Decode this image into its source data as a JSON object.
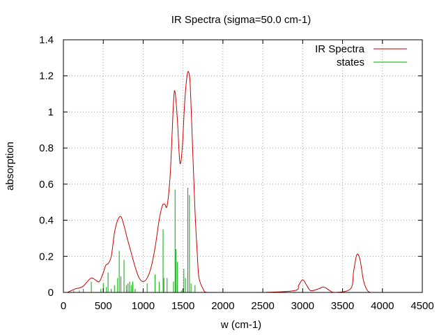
{
  "chart_data": {
    "type": "line",
    "title": "IR Spectra (sigma=50.0 cm-1)",
    "xlabel": "w (cm-1)",
    "ylabel": "absorption",
    "xlim": [
      0,
      4500
    ],
    "ylim": [
      0,
      1.4
    ],
    "x_ticks": [
      0,
      500,
      1000,
      1500,
      2000,
      2500,
      3000,
      3500,
      4000,
      4500
    ],
    "x_tick_labels": [
      "0",
      "500",
      "1000",
      "1500",
      "2000",
      "2500",
      "3000",
      "3500",
      "4000",
      "4500"
    ],
    "y_ticks": [
      0,
      0.2,
      0.4,
      0.6,
      0.8,
      1.0,
      1.2,
      1.4
    ],
    "y_tick_labels": [
      "0",
      "0.2",
      "0.4",
      "0.6",
      "0.8",
      "1",
      "1.2",
      "1.4"
    ],
    "grid": true,
    "legend_position": "top-right",
    "series": [
      {
        "name": "IR Spectra",
        "color": "#cc0000",
        "style": "line",
        "x": [
          50,
          100,
          150,
          200,
          250,
          300,
          350,
          400,
          450,
          500,
          530,
          560,
          600,
          640,
          680,
          720,
          760,
          800,
          850,
          900,
          950,
          1000,
          1050,
          1100,
          1150,
          1200,
          1240,
          1270,
          1300,
          1340,
          1380,
          1400,
          1430,
          1460,
          1490,
          1520,
          1550,
          1570,
          1590,
          1620,
          1650,
          1680,
          1700,
          1750,
          1800,
          2000,
          2500,
          2900,
          2950,
          3000,
          3050,
          3100,
          3200,
          3250,
          3290,
          3340,
          3400,
          3600,
          3640,
          3680,
          3720,
          3760,
          3800,
          3850,
          4000,
          4400
        ],
        "y": [
          0.0,
          0.01,
          0.02,
          0.025,
          0.035,
          0.06,
          0.08,
          0.07,
          0.06,
          0.11,
          0.15,
          0.16,
          0.2,
          0.33,
          0.4,
          0.42,
          0.37,
          0.3,
          0.22,
          0.14,
          0.08,
          0.06,
          0.08,
          0.14,
          0.25,
          0.4,
          0.48,
          0.49,
          0.48,
          0.66,
          1.05,
          1.11,
          0.95,
          0.72,
          0.8,
          1.05,
          1.2,
          1.22,
          1.15,
          0.8,
          0.45,
          0.2,
          0.08,
          0.02,
          0.0,
          0.0,
          0.0,
          0.01,
          0.04,
          0.07,
          0.04,
          0.01,
          0.02,
          0.03,
          0.025,
          0.01,
          0.0,
          0.02,
          0.12,
          0.21,
          0.18,
          0.07,
          0.02,
          0.0,
          0.0,
          0.0
        ]
      },
      {
        "name": "states",
        "color": "#00aa00",
        "style": "impulses",
        "x": [
          130,
          200,
          250,
          350,
          470,
          500,
          540,
          560,
          600,
          640,
          680,
          700,
          720,
          760,
          790,
          810,
          830,
          850,
          870,
          900,
          1050,
          1150,
          1200,
          1250,
          1260,
          1300,
          1380,
          1400,
          1410,
          1430,
          1480,
          1510,
          1530,
          1560,
          1580,
          1600,
          1650
        ],
        "y": [
          0.01,
          0.01,
          0.02,
          0.06,
          0.02,
          0.05,
          0.03,
          0.11,
          0.02,
          0.04,
          0.08,
          0.23,
          0.09,
          0.18,
          0.04,
          0.05,
          0.06,
          0.04,
          0.06,
          0.02,
          0.05,
          0.1,
          0.06,
          0.35,
          0.08,
          0.08,
          0.06,
          0.57,
          0.24,
          0.17,
          0.01,
          0.13,
          0.08,
          0.58,
          0.54,
          0.05,
          0.04
        ]
      }
    ]
  }
}
